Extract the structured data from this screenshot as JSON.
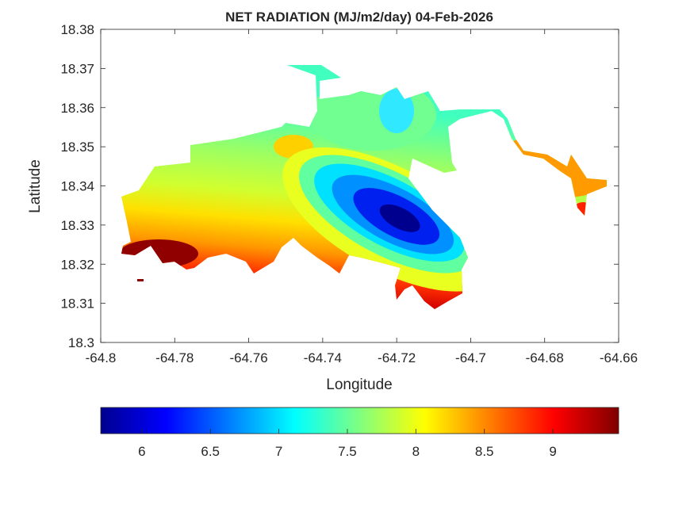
{
  "chart_data": {
    "type": "contour",
    "title": "NET RADIATION (MJ/m2/day) 04-Feb-2026",
    "xlabel": "Longitude",
    "ylabel": "Latitude",
    "xlim": [
      -64.8,
      -64.66
    ],
    "ylim": [
      18.3,
      18.38
    ],
    "xticks": [
      "-64.8",
      "-64.78",
      "-64.76",
      "-64.74",
      "-64.72",
      "-64.7",
      "-64.68",
      "-64.66"
    ],
    "yticks": [
      "18.3",
      "18.31",
      "18.32",
      "18.33",
      "18.34",
      "18.35",
      "18.36",
      "18.37",
      "18.38"
    ],
    "grid": false,
    "colormap": "jet",
    "colorbar": {
      "placement": "bottom",
      "range": [
        5.7,
        9.48
      ],
      "ticks": [
        "6",
        "6.5",
        "7",
        "7.5",
        "8",
        "8.5",
        "9"
      ],
      "colors": [
        "#00008f",
        "#0000ff",
        "#00ffff",
        "#80ff80",
        "#ffff00",
        "#ff8000",
        "#ff0000",
        "#800000"
      ]
    },
    "features": {
      "minimum": {
        "lon": -64.722,
        "lat": 18.333,
        "value": 5.7
      },
      "maximum": {
        "lon": -64.785,
        "lat": 18.322,
        "value": 9.45
      },
      "north_area_value": 7.4,
      "east_coast_value": 8.5
    }
  }
}
